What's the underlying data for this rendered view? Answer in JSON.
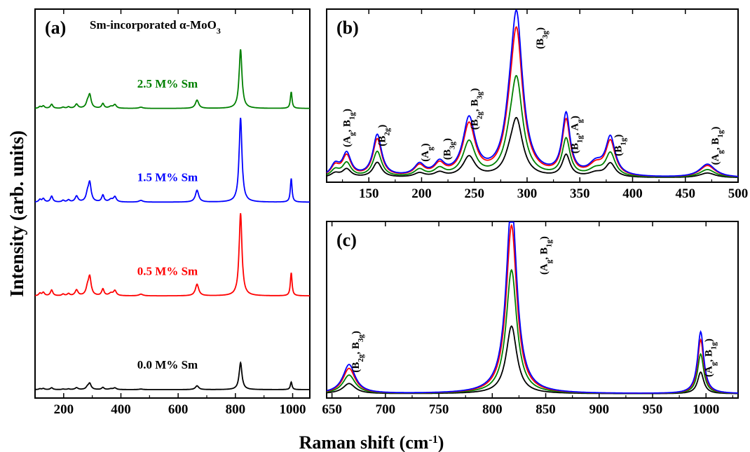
{
  "figure": {
    "ylabel": "Intensity (arb. units)",
    "xlabel": "Raman shift (cm",
    "xlabel_sup": "-1",
    "xlabel_close": ")"
  },
  "chart_data": [
    {
      "panel": "(a)",
      "type": "line",
      "title": "Sm-incorporated α-MoO3",
      "xlim": [
        100,
        1060
      ],
      "xticks": [
        200,
        400,
        600,
        800,
        1000
      ],
      "yticks": "none",
      "grid": false,
      "series": [
        {
          "name": "0.0 M% Sm",
          "color": "#000000",
          "offset": 0,
          "scale": 0.32
        },
        {
          "name": "0.5 M% Sm",
          "color": "#ff0000",
          "offset": 1,
          "scale": 0.98
        },
        {
          "name": "1.5 M% Sm",
          "color": "#0000ff",
          "offset": 2,
          "scale": 1.0
        },
        {
          "name": "2.5 M% Sm",
          "color": "#008000",
          "offset": 3,
          "scale": 0.7
        }
      ],
      "peaks_cm-1": [
        {
          "x": 117,
          "h": 0.03,
          "w": 5
        },
        {
          "x": 129,
          "h": 0.04,
          "w": 5
        },
        {
          "x": 158,
          "h": 0.07,
          "w": 5
        },
        {
          "x": 198,
          "h": 0.02,
          "w": 5
        },
        {
          "x": 217,
          "h": 0.025,
          "w": 5
        },
        {
          "x": 245,
          "h": 0.07,
          "w": 6
        },
        {
          "x": 283,
          "h": 0.08,
          "w": 6
        },
        {
          "x": 291,
          "h": 0.22,
          "w": 6
        },
        {
          "x": 337,
          "h": 0.08,
          "w": 5
        },
        {
          "x": 365,
          "h": 0.03,
          "w": 8
        },
        {
          "x": 379,
          "h": 0.06,
          "w": 6
        },
        {
          "x": 470,
          "h": 0.02,
          "w": 8
        },
        {
          "x": 666,
          "h": 0.14,
          "w": 7
        },
        {
          "x": 818,
          "h": 1.0,
          "w": 6
        },
        {
          "x": 995,
          "h": 0.28,
          "w": 3.5
        }
      ]
    },
    {
      "panel": "(b)",
      "type": "line",
      "xlim": [
        110,
        500
      ],
      "xticks": [
        150,
        200,
        250,
        300,
        350,
        400,
        450,
        500
      ],
      "yticks": "none",
      "grid": false,
      "series": [
        {
          "name": "0.0 M% Sm",
          "color": "#000000",
          "scale": 0.36
        },
        {
          "name": "2.5 M% Sm",
          "color": "#008000",
          "scale": 0.61
        },
        {
          "name": "0.5 M% Sm",
          "color": "#ff0000",
          "scale": 0.9
        },
        {
          "name": "1.5 M% Sm",
          "color": "#0000ff",
          "scale": 1.0
        }
      ],
      "peaks_cm-1": [
        {
          "x": 118,
          "h": 0.06,
          "w": 5
        },
        {
          "x": 129,
          "h": 0.12,
          "w": 5
        },
        {
          "x": 158,
          "h": 0.22,
          "w": 5
        },
        {
          "x": 198,
          "h": 0.06,
          "w": 6
        },
        {
          "x": 217,
          "h": 0.065,
          "w": 6
        },
        {
          "x": 245,
          "h": 0.3,
          "w": 7
        },
        {
          "x": 283,
          "h": 0.1,
          "w": 6
        },
        {
          "x": 290,
          "h": 0.83,
          "w": 7
        },
        {
          "x": 337,
          "h": 0.32,
          "w": 4.5
        },
        {
          "x": 365,
          "h": 0.06,
          "w": 8
        },
        {
          "x": 379,
          "h": 0.2,
          "w": 5.5
        },
        {
          "x": 471,
          "h": 0.07,
          "w": 9
        }
      ],
      "annotations": [
        {
          "main": "(A",
          "sub": "g",
          "mid": ", B",
          "sub2": "1g",
          "end": ")",
          "x": 129
        },
        {
          "main": "(B",
          "sub": "2g",
          "mid": "",
          "sub2": "",
          "end": ")",
          "x": 162
        },
        {
          "main": "(A",
          "sub": "g",
          "mid": "",
          "sub2": "",
          "end": ")",
          "x": 203
        },
        {
          "main": "(B",
          "sub": "3g",
          "mid": "",
          "sub2": "",
          "end": ")",
          "x": 224
        },
        {
          "main": "(B",
          "sub": "2g",
          "mid": ", B",
          "sub2": "3g",
          "end": ")",
          "x": 250
        },
        {
          "main": "(B",
          "sub": "3g",
          "mid": "",
          "sub2": "",
          "end": ")",
          "x": 312
        },
        {
          "main": "(B",
          "sub": "1g",
          "mid": ", A",
          "sub2": "g",
          "end": ")",
          "x": 345
        },
        {
          "main": "(B",
          "sub": "1g",
          "mid": "",
          "sub2": "",
          "end": ")",
          "x": 386
        },
        {
          "main": "(A",
          "sub": "g",
          "mid": ", B",
          "sub2": "1g",
          "end": ")",
          "x": 478
        }
      ]
    },
    {
      "panel": "(c)",
      "type": "line",
      "xlim": [
        645,
        1030
      ],
      "xticks": [
        650,
        700,
        750,
        800,
        850,
        900,
        950,
        1000
      ],
      "yticks": "none",
      "grid": false,
      "series": [
        {
          "name": "0.0 M% Sm",
          "color": "#000000",
          "scale": 0.35
        },
        {
          "name": "2.5 M% Sm",
          "color": "#008000",
          "scale": 0.64
        },
        {
          "name": "0.5 M% Sm",
          "color": "#ff0000",
          "scale": 0.87
        },
        {
          "name": "1.5 M% Sm",
          "color": "#0000ff",
          "scale": 1.0
        }
      ],
      "peaks_cm-1": [
        {
          "x": 666,
          "h": 0.15,
          "w": 7
        },
        {
          "x": 818,
          "h": 1.0,
          "w": 6
        },
        {
          "x": 995,
          "h": 0.32,
          "w": 3.5
        }
      ],
      "annotations": [
        {
          "main": "(B",
          "sub": "2g",
          "mid": ", B",
          "sub2": "3g",
          "end": ")",
          "x": 672
        },
        {
          "main": "(A",
          "sub": "g",
          "mid": ", B",
          "sub2": "1g",
          "end": ")",
          "x": 848
        },
        {
          "main": "(A",
          "sub": "g",
          "mid": ", B",
          "sub2": "1g",
          "end": ")",
          "x": 1002
        }
      ]
    }
  ]
}
